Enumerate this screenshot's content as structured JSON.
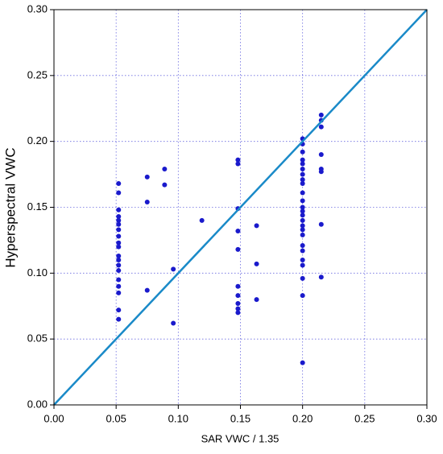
{
  "chart_data": {
    "type": "scatter",
    "xlabel": "SAR VWC / 1.35",
    "ylabel": "Hyperspectral VWC",
    "color": "#1a1acc",
    "x": [
      0.052,
      0.052,
      0.052,
      0.052,
      0.052,
      0.052,
      0.052,
      0.052,
      0.052,
      0.052,
      0.052,
      0.052,
      0.052,
      0.052,
      0.052,
      0.052,
      0.052,
      0.052,
      0.052,
      0.075,
      0.075,
      0.075,
      0.089,
      0.089,
      0.096,
      0.096,
      0.119,
      0.148,
      0.148,
      0.148,
      0.148,
      0.148,
      0.148,
      0.148,
      0.148,
      0.148,
      0.148,
      0.163,
      0.163,
      0.163,
      0.2,
      0.2,
      0.2,
      0.2,
      0.2,
      0.2,
      0.2,
      0.2,
      0.2,
      0.2,
      0.2,
      0.2,
      0.2,
      0.2,
      0.2,
      0.2,
      0.2,
      0.2,
      0.2,
      0.2,
      0.2,
      0.2,
      0.2,
      0.2,
      0.2,
      0.215,
      0.215,
      0.215,
      0.215,
      0.215,
      0.215,
      0.215,
      0.215
    ],
    "values": [
      0.168,
      0.161,
      0.148,
      0.143,
      0.14,
      0.137,
      0.133,
      0.128,
      0.123,
      0.12,
      0.113,
      0.11,
      0.106,
      0.102,
      0.095,
      0.09,
      0.085,
      0.072,
      0.065,
      0.173,
      0.154,
      0.087,
      0.179,
      0.167,
      0.103,
      0.062,
      0.14,
      0.186,
      0.183,
      0.149,
      0.132,
      0.118,
      0.09,
      0.083,
      0.077,
      0.073,
      0.07,
      0.136,
      0.107,
      0.08,
      0.202,
      0.198,
      0.192,
      0.186,
      0.183,
      0.179,
      0.175,
      0.171,
      0.168,
      0.161,
      0.155,
      0.15,
      0.147,
      0.144,
      0.14,
      0.136,
      0.133,
      0.129,
      0.121,
      0.117,
      0.11,
      0.106,
      0.096,
      0.083,
      0.032,
      0.22,
      0.216,
      0.211,
      0.19,
      0.179,
      0.177,
      0.137,
      0.097
    ],
    "lines": [
      {
        "x": [
          0,
          0.3
        ],
        "values": [
          0,
          0.3
        ],
        "color": "#1a8ac8"
      }
    ],
    "xlim": [
      0,
      0.3
    ],
    "ylim": [
      0,
      0.3
    ],
    "xticks": [
      {
        "value": 0,
        "label": "0.00"
      },
      {
        "value": 0.05,
        "label": "0.05"
      },
      {
        "value": 0.1,
        "label": "0.10"
      },
      {
        "value": 0.15,
        "label": "0.15"
      },
      {
        "value": 0.2,
        "label": "0.20"
      },
      {
        "value": 0.25,
        "label": "0.25"
      },
      {
        "value": 0.3,
        "label": "0.30"
      }
    ],
    "yticks": [
      {
        "value": 0,
        "label": "0.00"
      },
      {
        "value": 0.05,
        "label": "0.05"
      },
      {
        "value": 0.1,
        "label": "0.10"
      },
      {
        "value": 0.15,
        "label": "0.15"
      },
      {
        "value": 0.2,
        "label": "0.20"
      },
      {
        "value": 0.25,
        "label": "0.25"
      },
      {
        "value": 0.3,
        "label": "0.30"
      }
    ],
    "grid": true
  }
}
